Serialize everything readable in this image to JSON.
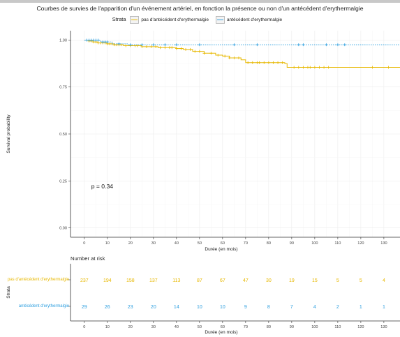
{
  "title": "Courbes de survies de l'apparition d'un événement artériel, en fonction la présence ou non d'un antécédent d'erythermalgie",
  "legend": {
    "title": "Strata",
    "items": [
      {
        "label": "pas d'antécédent d'erythermalgie",
        "color": "#E7B800"
      },
      {
        "label": "antécédent d'erythermalgie",
        "color": "#2E9FDF"
      }
    ]
  },
  "pvalue": "p = 0.34",
  "chart_data": {
    "type": "line",
    "xlabel": "Durée (en mois)",
    "ylabel": "Survival probability",
    "xlim": [
      -6,
      137
    ],
    "ylim": [
      -0.05,
      1.05
    ],
    "xticks": [
      0,
      10,
      20,
      30,
      40,
      50,
      60,
      70,
      80,
      90,
      100,
      110,
      120,
      130
    ],
    "yticks": [
      0.0,
      0.25,
      0.5,
      0.75,
      1.0
    ],
    "ytick_labels": [
      "0.00",
      "0.25",
      "0.50",
      "0.75",
      "1.00"
    ],
    "grid": true,
    "series": [
      {
        "name": "pas d'antécédent d'erythermalgie",
        "color": "#E7B800",
        "steps": [
          [
            0,
            1.0
          ],
          [
            2,
            0.995
          ],
          [
            4,
            0.99
          ],
          [
            6,
            0.985
          ],
          [
            10,
            0.98
          ],
          [
            13,
            0.975
          ],
          [
            17,
            0.97
          ],
          [
            25,
            0.965
          ],
          [
            32,
            0.96
          ],
          [
            40,
            0.955
          ],
          [
            43,
            0.95
          ],
          [
            47,
            0.94
          ],
          [
            52,
            0.93
          ],
          [
            57,
            0.92
          ],
          [
            60,
            0.915
          ],
          [
            63,
            0.905
          ],
          [
            68,
            0.895
          ],
          [
            70,
            0.88
          ],
          [
            87,
            0.875
          ],
          [
            88,
            0.855
          ],
          [
            90,
            0.855
          ],
          [
            137,
            0.855
          ]
        ],
        "censors": [
          2,
          3,
          4,
          5,
          6,
          7,
          8,
          9,
          10,
          11,
          12,
          13,
          14,
          15,
          16,
          18,
          20,
          22,
          23,
          25,
          27,
          29,
          31,
          33,
          35,
          37,
          38,
          40,
          42,
          44,
          46,
          48,
          50,
          52,
          55,
          58,
          61,
          63,
          65,
          67,
          71,
          73,
          75,
          76,
          78,
          80,
          82,
          84,
          86,
          91,
          93,
          95,
          97,
          98,
          100,
          102,
          104,
          106,
          125,
          132
        ]
      },
      {
        "name": "antécédent d'erythermalgie",
        "color": "#2E9FDF",
        "steps": [
          [
            0,
            1.0
          ],
          [
            7,
            0.99
          ],
          [
            12,
            0.98
          ],
          [
            19,
            0.975
          ],
          [
            137,
            0.975
          ]
        ],
        "censors": [
          1,
          2,
          3,
          4,
          5,
          6,
          8,
          9,
          10,
          15,
          20,
          25,
          30,
          35,
          40,
          50,
          65,
          75,
          93,
          95,
          105,
          110,
          113
        ]
      }
    ]
  },
  "risk_table": {
    "title": "Number at risk",
    "strata_label": "Strata",
    "xlabel": "Durée (en mois)",
    "rows": [
      {
        "label": "pas d'antécédent d'erythermalgie",
        "color": "#E7B800",
        "values": [
          "237",
          "194",
          "158",
          "137",
          "113",
          "87",
          "67",
          "47",
          "30",
          "19",
          "15",
          "5",
          "5",
          "4"
        ]
      },
      {
        "label": "antécédent d'erythermalgie",
        "color": "#2E9FDF",
        "values": [
          "29",
          "26",
          "23",
          "20",
          "14",
          "10",
          "10",
          "9",
          "8",
          "7",
          "4",
          "2",
          "1",
          "1"
        ]
      }
    ]
  }
}
